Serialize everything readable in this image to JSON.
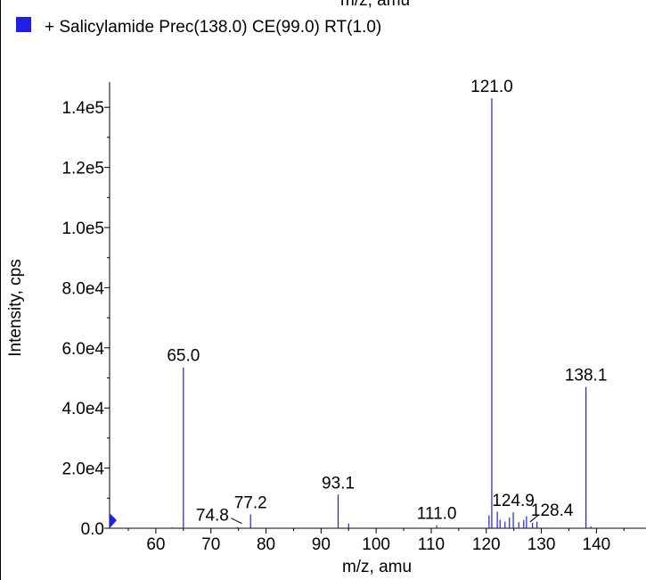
{
  "top_label": "m/z, amu",
  "legend": {
    "label": "+ Salicylamide Prec(138.0) CE(99.0) RT(1.0)",
    "color": "#1f1fe6"
  },
  "chart_data": {
    "type": "bar",
    "xlabel": "m/z, amu",
    "ylabel": "Intensity, cps",
    "xlim": [
      51.6,
      149.0
    ],
    "ylim": [
      0,
      146000
    ],
    "xticks": [
      60,
      70,
      80,
      90,
      100,
      110,
      120,
      130,
      140
    ],
    "xtick_labels": [
      "60",
      "70",
      "80",
      "90",
      "100",
      "110",
      "120",
      "130",
      "140"
    ],
    "yticks": [
      0,
      20000,
      40000,
      60000,
      80000,
      100000,
      120000,
      140000
    ],
    "ytick_labels": [
      "0.0",
      "2.0e4",
      "4.0e4",
      "6.0e4",
      "8.0e4",
      "1.0e5",
      "1.2e5",
      "1.4e5"
    ],
    "series": [
      {
        "color": "#1f1fe6",
        "points": [
          {
            "x": 63.0,
            "y": 300
          },
          {
            "x": 65.0,
            "y": 53500
          },
          {
            "x": 74.8,
            "y": 400
          },
          {
            "x": 77.2,
            "y": 4600
          },
          {
            "x": 93.1,
            "y": 11200
          },
          {
            "x": 95.0,
            "y": 1600
          },
          {
            "x": 111.0,
            "y": 1000
          },
          {
            "x": 120.5,
            "y": 4300
          },
          {
            "x": 121.0,
            "y": 143000
          },
          {
            "x": 122.0,
            "y": 5500
          },
          {
            "x": 122.5,
            "y": 2800
          },
          {
            "x": 123.4,
            "y": 2200
          },
          {
            "x": 124.2,
            "y": 3500
          },
          {
            "x": 124.9,
            "y": 5300
          },
          {
            "x": 125.9,
            "y": 2000
          },
          {
            "x": 126.8,
            "y": 2800
          },
          {
            "x": 127.3,
            "y": 4000
          },
          {
            "x": 128.4,
            "y": 1800
          },
          {
            "x": 129.2,
            "y": 2200
          },
          {
            "x": 138.1,
            "y": 47000
          },
          {
            "x": 139.0,
            "y": 600
          }
        ]
      }
    ],
    "annotations": [
      {
        "label": "65.0",
        "x": 65.0,
        "y": 53500
      },
      {
        "label": "74.8",
        "x": 74.8,
        "y": 400
      },
      {
        "label": "77.2",
        "x": 77.2,
        "y": 4600
      },
      {
        "label": "93.1",
        "x": 93.1,
        "y": 11200
      },
      {
        "label": "111.0",
        "x": 111.0,
        "y": 1000
      },
      {
        "label": "121.0",
        "x": 121.0,
        "y": 143000
      },
      {
        "label": "124.9",
        "x": 124.9,
        "y": 5300
      },
      {
        "label": "128.4",
        "x": 128.4,
        "y": 1800
      },
      {
        "label": "138.1",
        "x": 138.1,
        "y": 47000
      }
    ]
  }
}
